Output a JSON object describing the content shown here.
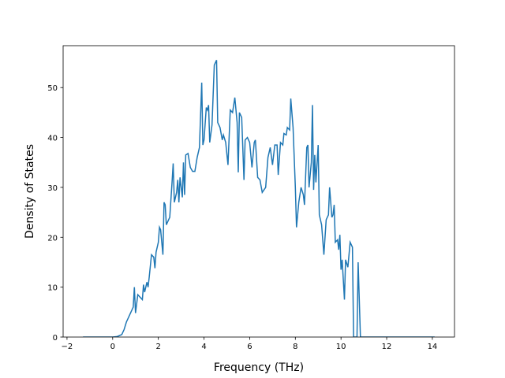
{
  "chart_data": {
    "type": "line",
    "x_label": "Frequency (THz)",
    "y_label": "Density of States",
    "color": "#1f77b4",
    "x": [
      -1.3,
      0,
      0.2,
      0.4,
      0.5,
      0.6,
      0.7,
      0.8,
      0.9,
      0.95,
      1.0,
      1.1,
      1.2,
      1.3,
      1.35,
      1.4,
      1.5,
      1.55,
      1.6,
      1.7,
      1.8,
      1.85,
      1.9,
      2.0,
      2.05,
      2.1,
      2.15,
      2.2,
      2.25,
      2.3,
      2.35,
      2.45,
      2.5,
      2.6,
      2.65,
      2.7,
      2.8,
      2.85,
      2.9,
      2.95,
      3.05,
      3.1,
      3.15,
      3.2,
      3.3,
      3.4,
      3.5,
      3.6,
      3.7,
      3.8,
      3.9,
      3.95,
      4.0,
      4.1,
      4.15,
      4.2,
      4.25,
      4.35,
      4.45,
      4.55,
      4.6,
      4.7,
      4.8,
      4.85,
      4.95,
      5.05,
      5.15,
      5.25,
      5.35,
      5.45,
      5.5,
      5.55,
      5.65,
      5.75,
      5.8,
      5.9,
      6.0,
      6.1,
      6.2,
      6.25,
      6.35,
      6.45,
      6.55,
      6.7,
      6.8,
      6.9,
      7.0,
      7.1,
      7.2,
      7.25,
      7.35,
      7.45,
      7.5,
      7.6,
      7.65,
      7.75,
      7.8,
      7.9,
      8.0,
      8.05,
      8.15,
      8.25,
      8.35,
      8.4,
      8.5,
      8.55,
      8.6,
      8.7,
      8.75,
      8.8,
      8.85,
      8.9,
      9.0,
      9.05,
      9.15,
      9.25,
      9.35,
      9.45,
      9.5,
      9.6,
      9.65,
      9.7,
      9.75,
      9.85,
      9.9,
      9.95,
      10.0,
      10.05,
      10.15,
      10.2,
      10.3,
      10.4,
      10.5,
      10.55,
      10.7,
      10.75,
      10.85,
      11.0,
      14.1
    ],
    "values": [
      0,
      0,
      0.1,
      0.5,
      1.5,
      3,
      4,
      5,
      6,
      10,
      4.8,
      8.5,
      8,
      7.5,
      10.5,
      9,
      11,
      10,
      12,
      16.5,
      16,
      13.8,
      17,
      19,
      22,
      21.5,
      19,
      16.5,
      27,
      26.5,
      22.5,
      23.5,
      24,
      31,
      34.8,
      27,
      29,
      31.5,
      27,
      32,
      28,
      35,
      28.5,
      36.5,
      36.8,
      34,
      33.2,
      33.2,
      36,
      38,
      51,
      38.5,
      39.5,
      46,
      45.5,
      46.5,
      39,
      42.5,
      54.5,
      55.5,
      43,
      42,
      39.5,
      40.5,
      39,
      34.5,
      45.5,
      45,
      48,
      43,
      33,
      45,
      44,
      31.5,
      39.5,
      40,
      39,
      34,
      39,
      39.5,
      32,
      31.5,
      29,
      30,
      36,
      38,
      34.5,
      38.5,
      38.5,
      32.5,
      39,
      38.5,
      40.8,
      40.5,
      42,
      41.5,
      47.8,
      42,
      30,
      22,
      27,
      30,
      28.5,
      26.5,
      38,
      38.5,
      30,
      35,
      46.5,
      29.5,
      36.5,
      31,
      38.5,
      24.5,
      22.5,
      16.5,
      23.5,
      24.5,
      30,
      24,
      24.5,
      26.5,
      19,
      19.5,
      17.5,
      20.5,
      13.5,
      15.5,
      7.5,
      15.5,
      14,
      19,
      18,
      0,
      0,
      15,
      0,
      0,
      0
    ],
    "xlim": [
      -2.17,
      14.97
    ],
    "ylim": [
      0,
      58.4
    ],
    "xticks": [
      {
        "value": -2,
        "label": "−2"
      },
      0,
      2,
      4,
      6,
      8,
      10,
      12,
      14
    ],
    "yticks": [
      0,
      10,
      20,
      30,
      40,
      50
    ]
  }
}
